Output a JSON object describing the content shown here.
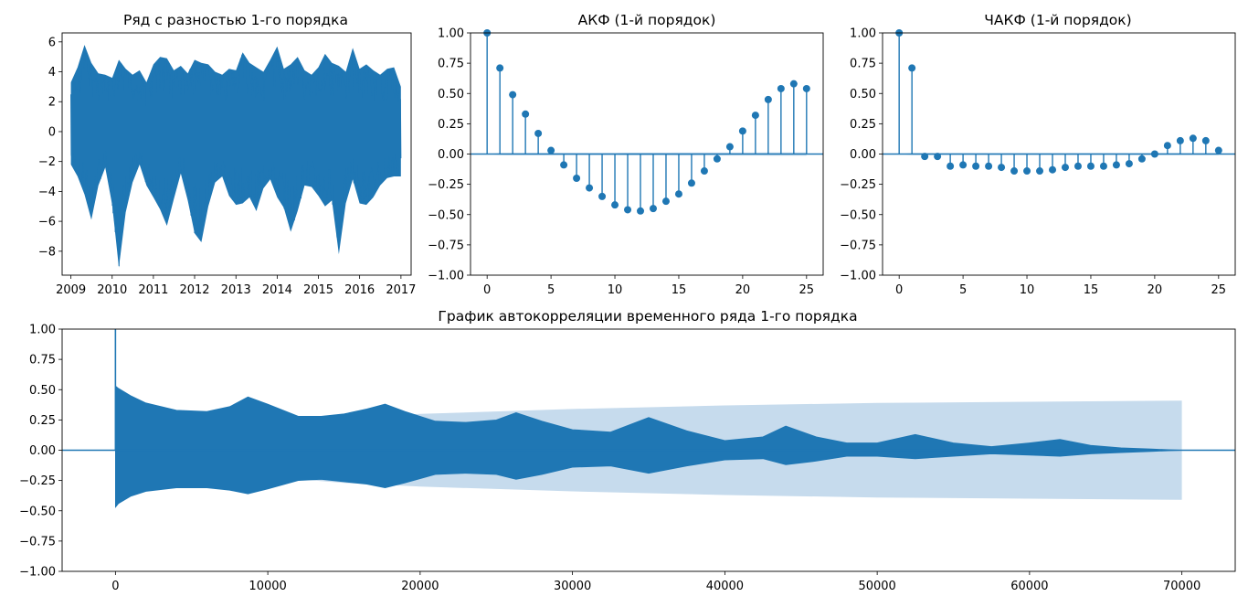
{
  "colors": {
    "series": "#1f77b4",
    "confidence_band": "#c6dbed",
    "axes": "#000000",
    "background": "#ffffff"
  },
  "chart_data": [
    {
      "id": "diff-series",
      "type": "line",
      "title": "Ряд с разностью 1-го порядка",
      "xlabel": "",
      "ylabel": "",
      "x_type": "date",
      "xlim": [
        "2008-10-15",
        "2017-04-01"
      ],
      "ylim": [
        -9.6,
        6.6
      ],
      "xticks": [
        "2009",
        "2010",
        "2011",
        "2012",
        "2013",
        "2014",
        "2015",
        "2016",
        "2017"
      ],
      "yticks": [
        6,
        4,
        2,
        0,
        -2,
        -4,
        -6,
        -8
      ],
      "grid": false,
      "envelope": {
        "note_free": true,
        "dates": [
          "2009-01-01",
          "2009-03-01",
          "2009-05-01",
          "2009-07-01",
          "2009-09-01",
          "2009-11-01",
          "2010-01-01",
          "2010-03-01",
          "2010-05-01",
          "2010-07-01",
          "2010-09-01",
          "2010-11-01",
          "2011-01-01",
          "2011-03-01",
          "2011-05-01",
          "2011-07-01",
          "2011-09-01",
          "2011-11-01",
          "2012-01-01",
          "2012-03-01",
          "2012-05-01",
          "2012-07-01",
          "2012-09-01",
          "2012-11-01",
          "2013-01-01",
          "2013-03-01",
          "2013-05-01",
          "2013-07-01",
          "2013-09-01",
          "2013-11-01",
          "2014-01-01",
          "2014-03-01",
          "2014-05-01",
          "2014-07-01",
          "2014-09-01",
          "2014-11-01",
          "2015-01-01",
          "2015-03-01",
          "2015-05-01",
          "2015-07-01",
          "2015-09-01",
          "2015-11-01",
          "2016-01-01",
          "2016-03-01",
          "2016-05-01",
          "2016-07-01",
          "2016-09-01",
          "2016-11-01",
          "2016-12-31"
        ],
        "upper": [
          3.3,
          4.3,
          5.8,
          4.6,
          3.9,
          3.8,
          3.6,
          4.8,
          4.2,
          3.8,
          4.1,
          3.3,
          4.5,
          5.0,
          4.9,
          4.1,
          4.4,
          3.9,
          4.8,
          4.6,
          4.5,
          4.0,
          3.8,
          4.2,
          4.1,
          5.3,
          4.6,
          4.3,
          4.0,
          4.8,
          5.7,
          4.2,
          4.5,
          5.0,
          4.1,
          3.8,
          4.3,
          5.2,
          4.6,
          4.4,
          4.0,
          5.6,
          4.2,
          4.5,
          4.1,
          3.8,
          4.2,
          4.3,
          3.0
        ],
        "lower": [
          -2.2,
          -3.0,
          -4.2,
          -5.9,
          -3.6,
          -2.4,
          -4.9,
          -9.1,
          -5.4,
          -3.4,
          -2.2,
          -3.6,
          -4.4,
          -5.2,
          -6.3,
          -4.5,
          -2.8,
          -4.6,
          -6.8,
          -7.4,
          -5.0,
          -3.4,
          -3.0,
          -4.3,
          -4.9,
          -4.8,
          -4.4,
          -5.3,
          -3.8,
          -3.2,
          -4.4,
          -5.1,
          -6.7,
          -5.3,
          -3.6,
          -3.7,
          -4.3,
          -5.0,
          -4.6,
          -8.2,
          -4.8,
          -3.2,
          -4.8,
          -4.9,
          -4.4,
          -3.6,
          -3.1,
          -3.0,
          -3.0
        ]
      }
    },
    {
      "id": "acf",
      "type": "stem",
      "title": "АКФ (1-й порядок)",
      "xlabel": "",
      "ylabel": "",
      "xlim": [
        -1.3,
        26.3
      ],
      "ylim": [
        -1.0,
        1.0
      ],
      "xticks": [
        0,
        5,
        10,
        15,
        20,
        25
      ],
      "yticks": [
        1.0,
        0.75,
        0.5,
        0.25,
        0.0,
        -0.25,
        -0.5,
        -0.75,
        -1.0
      ],
      "ytick_labels": [
        "1.00",
        "0.75",
        "0.50",
        "0.25",
        "0.00",
        "−0.25",
        "−0.50",
        "−0.75",
        "−1.00"
      ],
      "lags": [
        0,
        1,
        2,
        3,
        4,
        5,
        6,
        7,
        8,
        9,
        10,
        11,
        12,
        13,
        14,
        15,
        16,
        17,
        18,
        19,
        20,
        21,
        22,
        23,
        24,
        25
      ],
      "values": [
        1.0,
        0.71,
        0.49,
        0.33,
        0.17,
        0.03,
        -0.09,
        -0.2,
        -0.28,
        -0.35,
        -0.42,
        -0.46,
        -0.47,
        -0.45,
        -0.39,
        -0.33,
        -0.24,
        -0.14,
        -0.04,
        0.06,
        0.19,
        0.32,
        0.45,
        0.54,
        0.58,
        0.54
      ],
      "conf_upper": [
        0.0,
        0.008,
        0.009,
        0.009,
        0.009,
        0.01,
        0.01,
        0.01,
        0.01,
        0.01,
        0.01,
        0.011,
        0.011,
        0.011,
        0.011,
        0.012,
        0.012,
        0.012,
        0.012,
        0.012,
        0.012,
        0.012,
        0.013,
        0.013,
        0.013,
        0.013
      ],
      "grid": false
    },
    {
      "id": "pacf",
      "type": "stem",
      "title": "ЧАКФ (1-й порядок)",
      "xlabel": "",
      "ylabel": "",
      "xlim": [
        -1.3,
        26.3
      ],
      "ylim": [
        -1.0,
        1.0
      ],
      "xticks": [
        0,
        5,
        10,
        15,
        20,
        25
      ],
      "yticks": [
        1.0,
        0.75,
        0.5,
        0.25,
        0.0,
        -0.25,
        -0.5,
        -0.75,
        -1.0
      ],
      "ytick_labels": [
        "1.00",
        "0.75",
        "0.50",
        "0.25",
        "0.00",
        "−0.25",
        "−0.50",
        "−0.75",
        "−1.00"
      ],
      "lags": [
        0,
        1,
        2,
        3,
        4,
        5,
        6,
        7,
        8,
        9,
        10,
        11,
        12,
        13,
        14,
        15,
        16,
        17,
        18,
        19,
        20,
        21,
        22,
        23,
        24,
        25
      ],
      "values": [
        1.0,
        0.71,
        -0.02,
        -0.02,
        -0.1,
        -0.09,
        -0.1,
        -0.1,
        -0.11,
        -0.14,
        -0.14,
        -0.14,
        -0.13,
        -0.11,
        -0.1,
        -0.1,
        -0.1,
        -0.09,
        -0.08,
        -0.04,
        0.0,
        0.07,
        0.11,
        0.13,
        0.11,
        0.03
      ],
      "conf_upper": [
        0.0,
        0.008,
        0.008,
        0.008,
        0.008,
        0.008,
        0.008,
        0.008,
        0.008,
        0.008,
        0.008,
        0.008,
        0.008,
        0.008,
        0.008,
        0.008,
        0.008,
        0.008,
        0.008,
        0.008,
        0.008,
        0.008,
        0.008,
        0.008,
        0.008,
        0.008
      ],
      "grid": false
    },
    {
      "id": "full-acf",
      "type": "stem",
      "title": "График автокорреляции временного ряда 1-го порядка",
      "xlabel": "",
      "ylabel": "",
      "xlim": [
        -3500,
        73500
      ],
      "ylim": [
        -1.0,
        1.0
      ],
      "xticks": [
        0,
        10000,
        20000,
        30000,
        40000,
        50000,
        60000,
        70000
      ],
      "yticks": [
        1.0,
        0.75,
        0.5,
        0.25,
        0.0,
        -0.25,
        -0.5,
        -0.75,
        -1.0
      ],
      "ytick_labels": [
        "1.00",
        "0.75",
        "0.50",
        "0.25",
        "0.00",
        "−0.25",
        "−0.50",
        "−0.75",
        "−1.00"
      ],
      "first_lag_value": 1.0,
      "envelope": {
        "lags": [
          0,
          200,
          1000,
          2000,
          4000,
          6000,
          7500,
          8700,
          10000,
          12000,
          13500,
          15000,
          16500,
          17700,
          19000,
          21000,
          23000,
          25000,
          26300,
          28000,
          30000,
          32500,
          35000,
          37500,
          40000,
          42500,
          44000,
          46000,
          48000,
          50000,
          52500,
          55000,
          57500,
          60000,
          62000,
          64000,
          66000,
          68000,
          70000
        ],
        "upper": [
          0.53,
          0.51,
          0.45,
          0.39,
          0.33,
          0.32,
          0.36,
          0.44,
          0.38,
          0.28,
          0.28,
          0.3,
          0.34,
          0.38,
          0.32,
          0.24,
          0.23,
          0.25,
          0.31,
          0.24,
          0.17,
          0.15,
          0.27,
          0.16,
          0.08,
          0.11,
          0.2,
          0.11,
          0.06,
          0.06,
          0.13,
          0.06,
          0.03,
          0.06,
          0.09,
          0.04,
          0.02,
          0.01,
          0.0
        ],
        "lower": [
          -0.47,
          -0.44,
          -0.38,
          -0.34,
          -0.31,
          -0.31,
          -0.33,
          -0.36,
          -0.32,
          -0.25,
          -0.24,
          -0.26,
          -0.28,
          -0.31,
          -0.27,
          -0.2,
          -0.19,
          -0.2,
          -0.24,
          -0.2,
          -0.14,
          -0.13,
          -0.19,
          -0.13,
          -0.08,
          -0.07,
          -0.12,
          -0.09,
          -0.05,
          -0.05,
          -0.07,
          -0.05,
          -0.03,
          -0.04,
          -0.05,
          -0.03,
          -0.02,
          -0.01,
          0.0
        ]
      },
      "conf_band": {
        "lags": [
          200,
          2000,
          5000,
          10000,
          15000,
          20000,
          30000,
          40000,
          50000,
          60000,
          70000
        ],
        "upper": [
          0.0,
          0.08,
          0.14,
          0.22,
          0.27,
          0.3,
          0.34,
          0.37,
          0.39,
          0.4,
          0.41
        ]
      },
      "grid": false
    }
  ]
}
